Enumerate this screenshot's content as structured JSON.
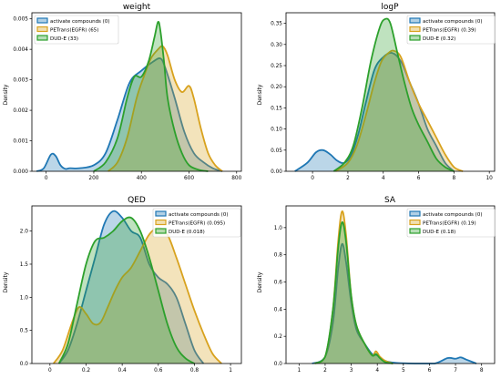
{
  "chart_data": [
    {
      "type": "area",
      "title": "weight",
      "xlabel": "",
      "ylabel": "Density",
      "xlim": [
        -60,
        820
      ],
      "ylim": [
        0,
        0.0052
      ],
      "xticks": [
        0,
        200,
        400,
        600,
        800
      ],
      "yticks": [
        0.0,
        0.001,
        0.002,
        0.003,
        0.004,
        0.005
      ],
      "ytick_decimals": 3,
      "legend": [
        "activate compounds (0)",
        "PETrans(EGFR) (65)",
        "DUD-E (33)"
      ],
      "legend_position": "top-left",
      "series": [
        {
          "name": "activate compounds (0)",
          "color": "#1f77b4",
          "x": [
            -40,
            -10,
            20,
            40,
            60,
            80,
            100,
            140,
            200,
            250,
            300,
            350,
            400,
            450,
            480,
            500,
            540,
            580,
            620,
            660,
            700,
            740
          ],
          "y": [
            0,
            0.0001,
            0.00055,
            0.0005,
            0.0002,
            8e-05,
            0.0001,
            0.0001,
            0.0002,
            0.0006,
            0.0017,
            0.0029,
            0.0033,
            0.0036,
            0.0037,
            0.0034,
            0.0024,
            0.0013,
            0.0006,
            0.0003,
            0.0001,
            0
          ]
        },
        {
          "name": "PETrans(EGFR) (65)",
          "color": "#d8a21e",
          "x": [
            260,
            300,
            340,
            380,
            410,
            440,
            470,
            490,
            510,
            540,
            570,
            600,
            620,
            650,
            680,
            710,
            740
          ],
          "y": [
            0,
            0.0003,
            0.0011,
            0.0024,
            0.0031,
            0.0037,
            0.004,
            0.0041,
            0.0038,
            0.003,
            0.0026,
            0.0028,
            0.0024,
            0.0014,
            0.0006,
            0.0002,
            0
          ]
        },
        {
          "name": "DUD-E (33)",
          "color": "#2ca02c",
          "x": [
            200,
            250,
            300,
            340,
            370,
            400,
            430,
            455,
            470,
            480,
            495,
            510,
            540,
            570,
            600,
            640,
            680
          ],
          "y": [
            0,
            0.0003,
            0.0011,
            0.0024,
            0.0031,
            0.0031,
            0.0036,
            0.0044,
            0.0049,
            0.0046,
            0.0036,
            0.0024,
            0.0013,
            0.0006,
            0.0002,
            5e-05,
            0
          ]
        }
      ]
    },
    {
      "type": "area",
      "title": "logP",
      "xlabel": "",
      "ylabel": "Density",
      "xlim": [
        -1.5,
        10.3
      ],
      "ylim": [
        0,
        0.375
      ],
      "xticks": [
        0,
        2,
        4,
        6,
        8,
        10
      ],
      "yticks": [
        0.0,
        0.05,
        0.1,
        0.15,
        0.2,
        0.25,
        0.3,
        0.35
      ],
      "ytick_decimals": 2,
      "legend": [
        "activate compounds (0)",
        "PETrans(EGFR) (0.39)",
        "DUD-E (0.32)"
      ],
      "legend_position": "top-right",
      "series": [
        {
          "name": "activate compounds (0)",
          "color": "#1f77b4",
          "x": [
            -1.0,
            -0.3,
            0.2,
            0.6,
            1.0,
            1.4,
            1.8,
            2.2,
            2.6,
            3.0,
            3.5,
            4.0,
            4.5,
            5.0,
            5.5,
            6.0,
            6.5,
            7.0,
            7.5,
            8.0
          ],
          "y": [
            0,
            0.02,
            0.045,
            0.05,
            0.04,
            0.025,
            0.02,
            0.04,
            0.09,
            0.16,
            0.24,
            0.27,
            0.28,
            0.26,
            0.21,
            0.16,
            0.1,
            0.06,
            0.02,
            0
          ]
        },
        {
          "name": "PETrans(EGFR) (0.39)",
          "color": "#d8a21e",
          "x": [
            1.3,
            2.0,
            2.5,
            3.0,
            3.5,
            3.9,
            4.3,
            4.6,
            5.0,
            5.5,
            6.0,
            6.5,
            7.0,
            7.5,
            8.0,
            8.5
          ],
          "y": [
            0,
            0.02,
            0.06,
            0.13,
            0.21,
            0.26,
            0.28,
            0.285,
            0.27,
            0.21,
            0.16,
            0.12,
            0.08,
            0.04,
            0.01,
            0
          ]
        },
        {
          "name": "DUD-E (0.32)",
          "color": "#2ca02c",
          "x": [
            1.2,
            1.8,
            2.3,
            2.8,
            3.3,
            3.8,
            4.1,
            4.4,
            4.8,
            5.2,
            5.6,
            6.0,
            6.5,
            7.0,
            7.5,
            8.0
          ],
          "y": [
            0,
            0.02,
            0.06,
            0.15,
            0.26,
            0.34,
            0.36,
            0.35,
            0.28,
            0.21,
            0.15,
            0.11,
            0.07,
            0.03,
            0.01,
            0
          ]
        }
      ]
    },
    {
      "type": "area",
      "title": "QED",
      "xlabel": "",
      "ylabel": "Density",
      "xlim": [
        -0.1,
        1.06
      ],
      "ylim": [
        0,
        2.38
      ],
      "xticks": [
        0.0,
        0.2,
        0.4,
        0.6,
        0.8,
        1.0
      ],
      "yticks": [
        0.0,
        0.5,
        1.0,
        1.5,
        2.0
      ],
      "ytick_decimals": 1,
      "legend": [
        "activate compounds (0)",
        "PETrans(EGFR) (0.095)",
        "DUD-E (0.018)"
      ],
      "legend_position": "top-right",
      "series": [
        {
          "name": "activate compounds (0)",
          "color": "#1f77b4",
          "x": [
            0.05,
            0.1,
            0.15,
            0.2,
            0.25,
            0.3,
            0.35,
            0.4,
            0.45,
            0.5,
            0.55,
            0.6,
            0.65,
            0.7,
            0.75,
            0.8,
            0.85
          ],
          "y": [
            0,
            0.2,
            0.6,
            1.1,
            1.6,
            2.1,
            2.3,
            2.2,
            2.0,
            1.9,
            1.5,
            1.3,
            1.2,
            1.0,
            0.6,
            0.2,
            0
          ]
        },
        {
          "name": "PETrans(EGFR) (0.095)",
          "color": "#d8a21e",
          "x": [
            0.02,
            0.07,
            0.12,
            0.16,
            0.2,
            0.24,
            0.28,
            0.32,
            0.36,
            0.4,
            0.45,
            0.5,
            0.55,
            0.6,
            0.65,
            0.7,
            0.75,
            0.8,
            0.85,
            0.9,
            0.95
          ],
          "y": [
            0,
            0.2,
            0.6,
            0.85,
            0.75,
            0.6,
            0.62,
            0.85,
            1.1,
            1.3,
            1.45,
            1.7,
            1.95,
            2.05,
            1.95,
            1.6,
            1.2,
            0.8,
            0.45,
            0.15,
            0
          ]
        },
        {
          "name": "DUD-E (0.018)",
          "color": "#2ca02c",
          "x": [
            0.05,
            0.1,
            0.15,
            0.2,
            0.25,
            0.3,
            0.35,
            0.4,
            0.45,
            0.5,
            0.55,
            0.6,
            0.65,
            0.7,
            0.75,
            0.8
          ],
          "y": [
            0,
            0.3,
            0.9,
            1.5,
            1.85,
            1.9,
            2.0,
            2.15,
            2.2,
            2.0,
            1.6,
            1.1,
            0.6,
            0.25,
            0.08,
            0
          ]
        }
      ]
    },
    {
      "type": "area",
      "title": "SA",
      "xlabel": "",
      "ylabel": "Density",
      "xlim": [
        0.5,
        8.5
      ],
      "ylim": [
        0,
        1.16
      ],
      "xticks": [
        1,
        2,
        3,
        4,
        5,
        6,
        7,
        8
      ],
      "yticks": [
        0.0,
        0.2,
        0.4,
        0.6,
        0.8,
        1.0
      ],
      "ytick_decimals": 1,
      "legend": [
        "activate compounds (0)",
        "PETrans(EGFR) (0.19)",
        "DUD-E (0.18)"
      ],
      "legend_position": "top-right",
      "series": [
        {
          "name": "activate compounds (0)",
          "color": "#1f77b4",
          "x": [
            1.5,
            2.0,
            2.3,
            2.5,
            2.65,
            2.8,
            3.0,
            3.2,
            3.5,
            3.8,
            4.0,
            4.3,
            4.7,
            5.5,
            6.2,
            6.7,
            7.0,
            7.2,
            7.4,
            7.8
          ],
          "y": [
            0,
            0.05,
            0.3,
            0.7,
            0.88,
            0.75,
            0.45,
            0.25,
            0.15,
            0.07,
            0.06,
            0.02,
            0.005,
            0,
            0,
            0.04,
            0.035,
            0.045,
            0.03,
            0
          ]
        },
        {
          "name": "PETrans(EGFR) (0.19)",
          "color": "#d8a21e",
          "x": [
            1.6,
            2.0,
            2.3,
            2.5,
            2.65,
            2.8,
            3.0,
            3.2,
            3.5,
            3.8,
            3.95,
            4.1,
            4.3,
            4.6
          ],
          "y": [
            0,
            0.05,
            0.4,
            0.9,
            1.12,
            0.95,
            0.5,
            0.28,
            0.15,
            0.06,
            0.09,
            0.05,
            0.02,
            0
          ]
        },
        {
          "name": "DUD-E (0.18)",
          "color": "#2ca02c",
          "x": [
            1.6,
            2.0,
            2.3,
            2.5,
            2.65,
            2.8,
            3.0,
            3.2,
            3.5,
            3.8,
            3.95,
            4.1,
            4.3,
            4.6
          ],
          "y": [
            0,
            0.05,
            0.4,
            0.85,
            1.04,
            0.9,
            0.5,
            0.28,
            0.15,
            0.06,
            0.07,
            0.04,
            0.01,
            0
          ]
        }
      ]
    }
  ]
}
